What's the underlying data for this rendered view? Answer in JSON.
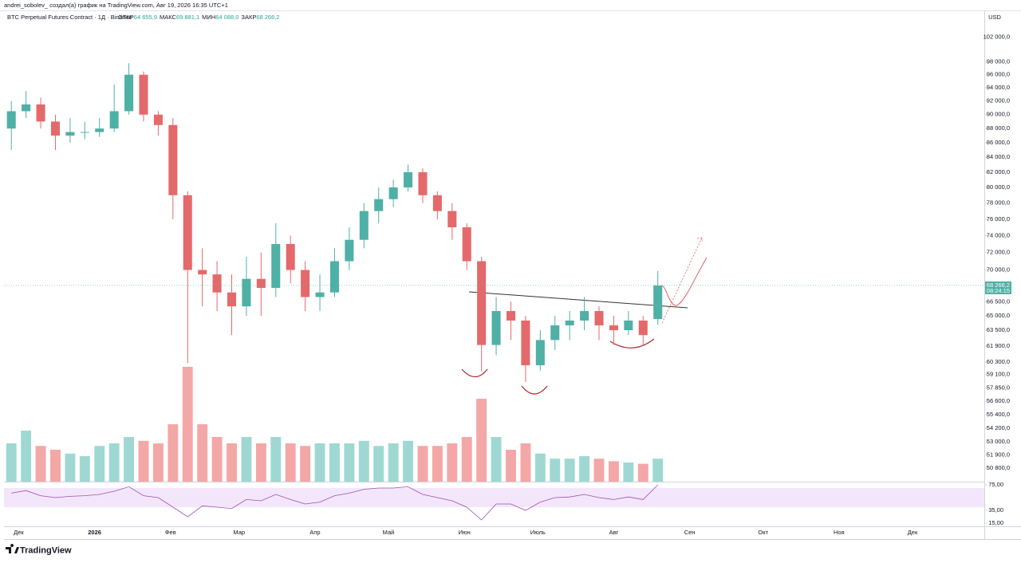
{
  "header": {
    "author_line": "andrei_sobolev_ создал(а) график на TradingView.com, Авг 19, 2026 16:35 UTC+1",
    "symbol": "BTC Perpetual Futures Contract · 1Д · Binance",
    "ohlc": [
      {
        "label": "ОТКР",
        "value": "64 655,9"
      },
      {
        "label": "МАКС",
        "value": "69 881,1"
      },
      {
        "label": "МИН",
        "value": "64 088,0"
      },
      {
        "label": "ЗАКР",
        "value": "68 266,2"
      }
    ]
  },
  "chart_data": {
    "type": "candlestick",
    "currency": "USD",
    "log_scale": true,
    "x": [
      -3,
      3,
      9,
      15,
      21,
      27,
      33,
      39,
      45,
      51,
      57,
      63,
      69,
      75,
      81,
      87,
      93,
      99,
      105,
      111,
      117,
      123,
      129,
      135,
      141,
      147,
      153,
      159,
      165,
      171,
      177,
      183,
      189,
      195,
      201,
      207,
      213,
      219,
      225,
      231,
      237,
      243,
      249,
      255,
      261
    ],
    "xlim": [
      -6,
      394
    ],
    "xticks": [
      {
        "value": 0,
        "label": "Дек"
      },
      {
        "value": 31,
        "label": "2026"
      },
      {
        "value": 62,
        "label": "Фев"
      },
      {
        "value": 90,
        "label": "Мар"
      },
      {
        "value": 121,
        "label": "Апр"
      },
      {
        "value": 151,
        "label": "Май"
      },
      {
        "value": 182,
        "label": "Июн"
      },
      {
        "value": 212,
        "label": "Июль"
      },
      {
        "value": 243,
        "label": "Авг"
      },
      {
        "value": 274,
        "label": "Сен"
      },
      {
        "value": 304,
        "label": "Окт"
      },
      {
        "value": 335,
        "label": "Ноя"
      },
      {
        "value": 365,
        "label": "Дек"
      }
    ],
    "open": [
      88000,
      90500,
      91500,
      89000,
      87000,
      87500,
      87500,
      88000,
      90500,
      96000,
      90000,
      88500,
      79000,
      70000,
      69500,
      67500,
      66000,
      69000,
      68000,
      73000,
      70000,
      67000,
      67500,
      71000,
      73500,
      77000,
      78500,
      80000,
      82000,
      79000,
      77000,
      75000,
      71000,
      62000,
      65500,
      64500,
      60000,
      62500,
      64000,
      64500,
      65500,
      64000,
      63500,
      64500,
      64655.9
    ],
    "high": [
      92000,
      93500,
      92500,
      90000,
      89500,
      89000,
      89500,
      94500,
      97800,
      96500,
      90500,
      89500,
      79500,
      72500,
      71000,
      69500,
      71500,
      72000,
      75500,
      74000,
      71000,
      69500,
      72500,
      75000,
      78000,
      80000,
      81000,
      83000,
      82500,
      79500,
      78000,
      75500,
      71500,
      67000,
      66500,
      65000,
      63500,
      65000,
      65500,
      67000,
      66000,
      65000,
      65500,
      65000,
      69881.1
    ],
    "low": [
      85000,
      89500,
      88000,
      85000,
      86000,
      86500,
      86800,
      87500,
      90000,
      89000,
      87000,
      76000,
      60200,
      66000,
      65500,
      63000,
      65000,
      65000,
      67000,
      68500,
      65500,
      65500,
      67000,
      70000,
      72500,
      75500,
      77500,
      79500,
      78000,
      76000,
      73500,
      70000,
      59400,
      61000,
      62500,
      58400,
      59500,
      61500,
      62500,
      63500,
      62500,
      62000,
      63000,
      62000,
      64088
    ],
    "close": [
      90500,
      91500,
      89000,
      87000,
      87500,
      87500,
      88000,
      90500,
      96000,
      90000,
      88500,
      79000,
      70000,
      69500,
      67500,
      66000,
      69000,
      68000,
      73000,
      70000,
      67000,
      67500,
      71000,
      73500,
      77000,
      78500,
      80000,
      82000,
      79000,
      77000,
      75000,
      71000,
      62000,
      65500,
      64500,
      60000,
      62500,
      64000,
      64500,
      65500,
      64000,
      63500,
      64500,
      63000,
      68266.2
    ],
    "ylim": [
      49700,
      106400
    ],
    "yticks": [
      {
        "value": 102000,
        "label": "102 000,0"
      },
      {
        "value": 98000,
        "label": "98 000,0"
      },
      {
        "value": 96000,
        "label": "96 000,0"
      },
      {
        "value": 94000,
        "label": "94 000,0"
      },
      {
        "value": 92000,
        "label": "92 000,0"
      },
      {
        "value": 90000,
        "label": "90 000,0"
      },
      {
        "value": 88000,
        "label": "88 000,0"
      },
      {
        "value": 86000,
        "label": "86 000,0"
      },
      {
        "value": 84000,
        "label": "84 000,0"
      },
      {
        "value": 82000,
        "label": "82 000,0"
      },
      {
        "value": 80000,
        "label": "80 000,0"
      },
      {
        "value": 78000,
        "label": "78 000,0"
      },
      {
        "value": 76000,
        "label": "76 000,0"
      },
      {
        "value": 74000,
        "label": "74 000,0"
      },
      {
        "value": 72000,
        "label": "72 000,0"
      },
      {
        "value": 70000,
        "label": "70 000,0"
      },
      {
        "value": 66500,
        "label": "66 500,0"
      },
      {
        "value": 65000,
        "label": "65 000,0"
      },
      {
        "value": 63500,
        "label": "63 500,0"
      },
      {
        "value": 61900,
        "label": "61 900,0"
      },
      {
        "value": 60300,
        "label": "60 300,0"
      },
      {
        "value": 59100,
        "label": "59 100,0"
      },
      {
        "value": 57850,
        "label": "57 850,0"
      },
      {
        "value": 56600,
        "label": "56 600,0"
      },
      {
        "value": 55400,
        "label": "55 400,0"
      },
      {
        "value": 54200,
        "label": "54 200,0"
      },
      {
        "value": 53000,
        "label": "53 000,0"
      },
      {
        "value": 51900,
        "label": "51 900,0"
      },
      {
        "value": 50800,
        "label": "50 800,0"
      }
    ],
    "last_price": {
      "value": 68266.2,
      "label": "68 266,2"
    },
    "countdown": "08:24:15",
    "up_color": "#4fb0a6",
    "down_color": "#e4696b",
    "volume": {
      "values": [
        30,
        40,
        28,
        25,
        22,
        20,
        28,
        30,
        35,
        32,
        30,
        45,
        90,
        45,
        35,
        30,
        35,
        30,
        35,
        30,
        28,
        30,
        30,
        30,
        32,
        28,
        30,
        32,
        28,
        28,
        30,
        35,
        65,
        35,
        25,
        30,
        22,
        18,
        18,
        20,
        18,
        16,
        15,
        14,
        18
      ],
      "ylim": [
        0,
        100
      ],
      "up_color": "#9fd8d2",
      "down_color": "#f4a7a7"
    },
    "rsi": {
      "values": [
        62,
        66,
        58,
        55,
        57,
        58,
        60,
        65,
        72,
        58,
        55,
        40,
        25,
        42,
        40,
        38,
        52,
        50,
        60,
        52,
        45,
        48,
        58,
        62,
        68,
        70,
        70,
        72,
        60,
        55,
        50,
        40,
        20,
        45,
        45,
        35,
        48,
        55,
        56,
        60,
        55,
        52,
        56,
        52,
        75
      ],
      "ylim": [
        10,
        80
      ],
      "yticks": [
        {
          "value": 75,
          "label": "75,00"
        },
        {
          "value": 35,
          "label": "35,00"
        },
        {
          "value": 15,
          "label": "15,00"
        }
      ],
      "band": [
        40,
        70
      ],
      "color": "#9c4fb0",
      "band_color": "#f3e6fb"
    }
  },
  "footer": {
    "brand": "TradingView"
  }
}
